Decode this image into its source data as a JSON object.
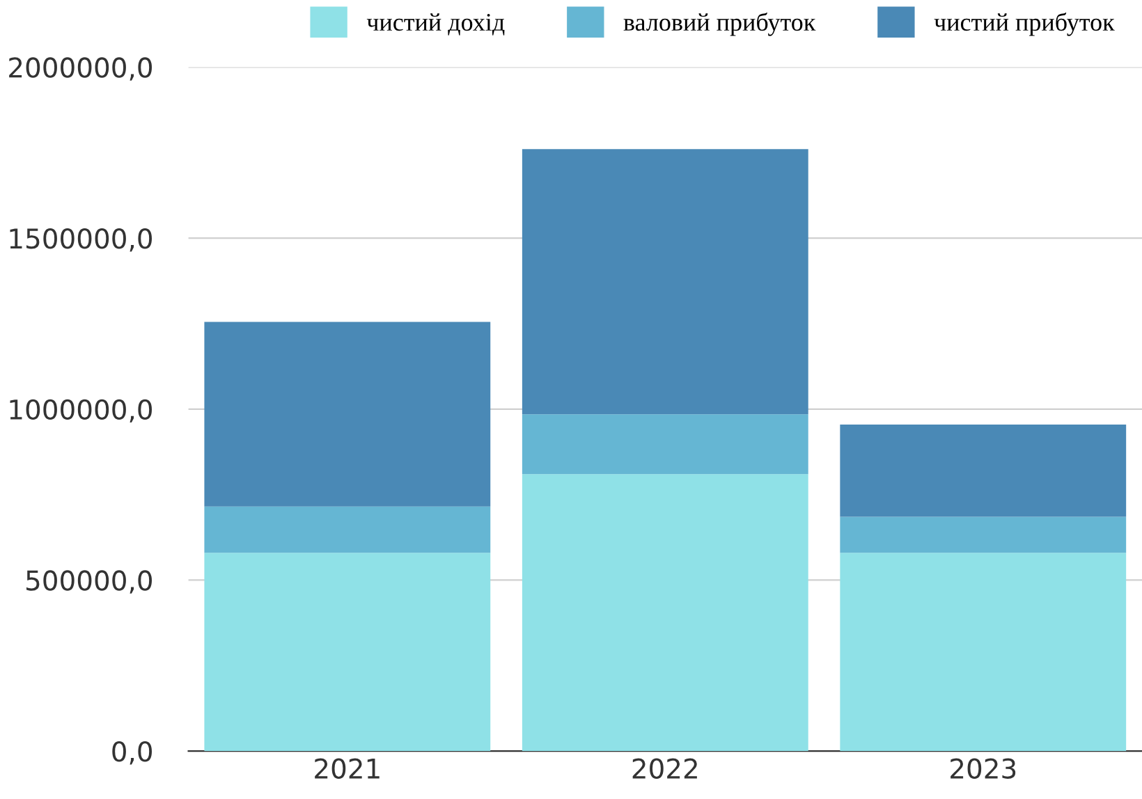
{
  "chart_data": {
    "type": "bar",
    "stacked": true,
    "categories": [
      "2021",
      "2022",
      "2023"
    ],
    "series": [
      {
        "name": "чистий дохід",
        "color": "#8fe1e7",
        "values": [
          580000,
          810000,
          580000
        ]
      },
      {
        "name": "валовий прибуток",
        "color": "#65b6d3",
        "values": [
          135000,
          175000,
          105000
        ]
      },
      {
        "name": "чистий прибуток",
        "color": "#4a89b6",
        "values": [
          540000,
          775000,
          270000
        ]
      }
    ],
    "ylim": [
      0,
      2000000
    ],
    "yticks": [
      {
        "value": 0,
        "label": "0,0"
      },
      {
        "value": 500000,
        "label": "500000,0"
      },
      {
        "value": 1000000,
        "label": "1000000,0"
      },
      {
        "value": 1500000,
        "label": "1500000,0"
      },
      {
        "value": 2000000,
        "label": "2000000,0"
      }
    ],
    "grid": "y",
    "legend": "top"
  }
}
